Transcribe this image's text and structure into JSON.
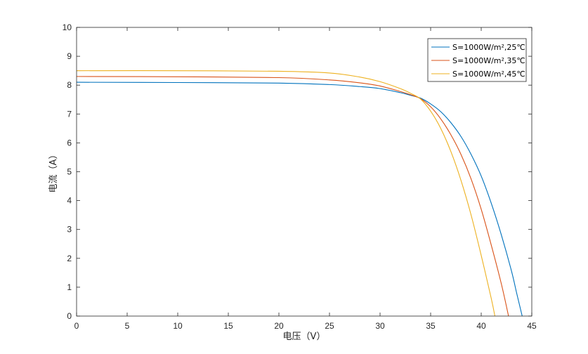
{
  "chart_data": {
    "type": "line",
    "xlabel": "电压（V）",
    "ylabel": "电流（A）",
    "xlim": [
      0,
      45
    ],
    "ylim": [
      0,
      10
    ],
    "xticks": [
      0,
      5,
      10,
      15,
      20,
      25,
      30,
      35,
      40,
      45
    ],
    "yticks": [
      0,
      1,
      2,
      3,
      4,
      5,
      6,
      7,
      8,
      9,
      10
    ],
    "grid": false,
    "legend_position": "top-right",
    "series": [
      {
        "name": "S=1000W/m²,25℃",
        "color": "#0072BD",
        "points": [
          [
            0,
            8.1
          ],
          [
            10,
            8.09
          ],
          [
            20,
            8.07
          ],
          [
            25,
            8.02
          ],
          [
            28,
            7.95
          ],
          [
            30,
            7.88
          ],
          [
            32,
            7.74
          ],
          [
            33,
            7.65
          ],
          [
            34,
            7.55
          ],
          [
            35,
            7.35
          ],
          [
            36,
            7.08
          ],
          [
            37,
            6.7
          ],
          [
            38,
            6.22
          ],
          [
            39,
            5.6
          ],
          [
            40,
            4.85
          ],
          [
            41,
            3.9
          ],
          [
            42,
            2.8
          ],
          [
            43,
            1.55
          ],
          [
            43.5,
            0.8
          ],
          [
            44.05,
            0
          ]
        ]
      },
      {
        "name": "S=1000W/m²,35℃",
        "color": "#D95319",
        "points": [
          [
            0,
            8.3
          ],
          [
            10,
            8.29
          ],
          [
            20,
            8.26
          ],
          [
            25,
            8.18
          ],
          [
            28,
            8.08
          ],
          [
            30,
            7.97
          ],
          [
            32,
            7.78
          ],
          [
            33,
            7.67
          ],
          [
            34,
            7.53
          ],
          [
            35,
            7.25
          ],
          [
            36,
            6.83
          ],
          [
            37,
            6.28
          ],
          [
            38,
            5.6
          ],
          [
            39,
            4.75
          ],
          [
            40,
            3.7
          ],
          [
            41,
            2.45
          ],
          [
            42,
            1.1
          ],
          [
            42.7,
            0
          ]
        ]
      },
      {
        "name": "S=1000W/m²,45℃",
        "color": "#EDB120",
        "points": [
          [
            0,
            8.5
          ],
          [
            10,
            8.5
          ],
          [
            20,
            8.48
          ],
          [
            25,
            8.42
          ],
          [
            28,
            8.28
          ],
          [
            30,
            8.12
          ],
          [
            32,
            7.88
          ],
          [
            33,
            7.72
          ],
          [
            34,
            7.52
          ],
          [
            35,
            7.1
          ],
          [
            36,
            6.5
          ],
          [
            37,
            5.7
          ],
          [
            38,
            4.7
          ],
          [
            39,
            3.5
          ],
          [
            40,
            2.1
          ],
          [
            41,
            0.6
          ],
          [
            41.35,
            0
          ]
        ]
      }
    ]
  }
}
